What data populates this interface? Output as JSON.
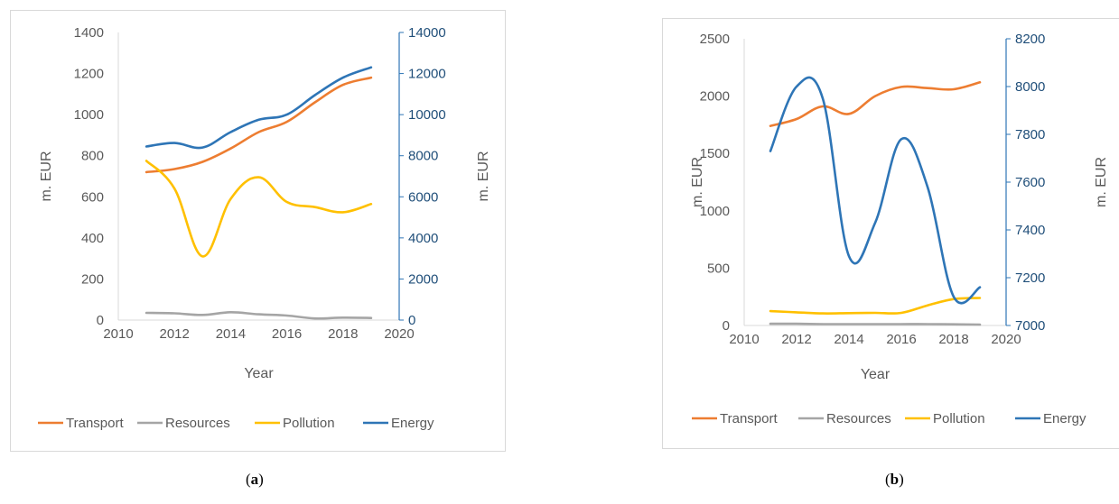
{
  "chart_data": [
    {
      "id": "a",
      "type": "line",
      "caption": {
        "open": "(",
        "letter": "a",
        "close": ")"
      },
      "xlabel": "Year",
      "ylabel": "m. EUR",
      "y2label": "m. EUR",
      "xlim": [
        2010,
        2020
      ],
      "xticks": [
        2010,
        2012,
        2014,
        2016,
        2018,
        2020
      ],
      "ylim": [
        0,
        1400
      ],
      "yticks": [
        0,
        200,
        400,
        600,
        800,
        1000,
        1200,
        1400
      ],
      "y2lim": [
        0,
        14000
      ],
      "y2ticks": [
        0,
        2000,
        4000,
        6000,
        8000,
        10000,
        12000,
        14000
      ],
      "grid": false,
      "legend_position": "bottom",
      "x": [
        2011,
        2012,
        2013,
        2014,
        2015,
        2016,
        2017,
        2018,
        2019
      ],
      "series": [
        {
          "name": "Transport",
          "color": "#ED7D31",
          "axis": "left",
          "values": [
            720,
            735,
            770,
            835,
            915,
            965,
            1060,
            1145,
            1180
          ]
        },
        {
          "name": "Resources",
          "color": "#A5A5A5",
          "axis": "left",
          "values": [
            35,
            33,
            25,
            38,
            28,
            22,
            8,
            12,
            10
          ]
        },
        {
          "name": "Pollution",
          "color": "#FFC000",
          "axis": "left",
          "values": [
            775,
            640,
            310,
            590,
            695,
            575,
            550,
            525,
            565
          ]
        },
        {
          "name": "Energy",
          "color": "#2E75B6",
          "axis": "right",
          "values": [
            8450,
            8620,
            8400,
            9150,
            9750,
            10000,
            10950,
            11800,
            12300
          ]
        }
      ]
    },
    {
      "id": "b",
      "type": "line",
      "caption": {
        "open": "(",
        "letter": "b",
        "close": ")"
      },
      "xlabel": "Year",
      "ylabel": "m. EUR",
      "y2label": "m. EUR",
      "xlim": [
        2010,
        2020
      ],
      "xticks": [
        2010,
        2012,
        2014,
        2016,
        2018,
        2020
      ],
      "ylim": [
        0,
        2500
      ],
      "yticks": [
        0,
        500,
        1000,
        1500,
        2000,
        2500
      ],
      "y2lim": [
        7000,
        8200
      ],
      "y2ticks": [
        7000,
        7200,
        7400,
        7600,
        7800,
        8000,
        8200
      ],
      "grid": false,
      "legend_position": "bottom",
      "x": [
        2011,
        2012,
        2013,
        2014,
        2015,
        2016,
        2017,
        2018,
        2019
      ],
      "series": [
        {
          "name": "Transport",
          "color": "#ED7D31",
          "axis": "left",
          "values": [
            1740,
            1800,
            1910,
            1845,
            2000,
            2080,
            2070,
            2060,
            2120
          ]
        },
        {
          "name": "Resources",
          "color": "#A5A5A5",
          "axis": "left",
          "values": [
            15,
            15,
            12,
            12,
            12,
            12,
            12,
            10,
            8
          ]
        },
        {
          "name": "Pollution",
          "color": "#FFC000",
          "axis": "left",
          "values": [
            125,
            115,
            105,
            108,
            110,
            110,
            175,
            230,
            240
          ]
        },
        {
          "name": "Energy",
          "color": "#2E75B6",
          "axis": "right",
          "values": [
            7730,
            8000,
            7950,
            7290,
            7430,
            7780,
            7580,
            7120,
            7160
          ]
        }
      ]
    }
  ]
}
